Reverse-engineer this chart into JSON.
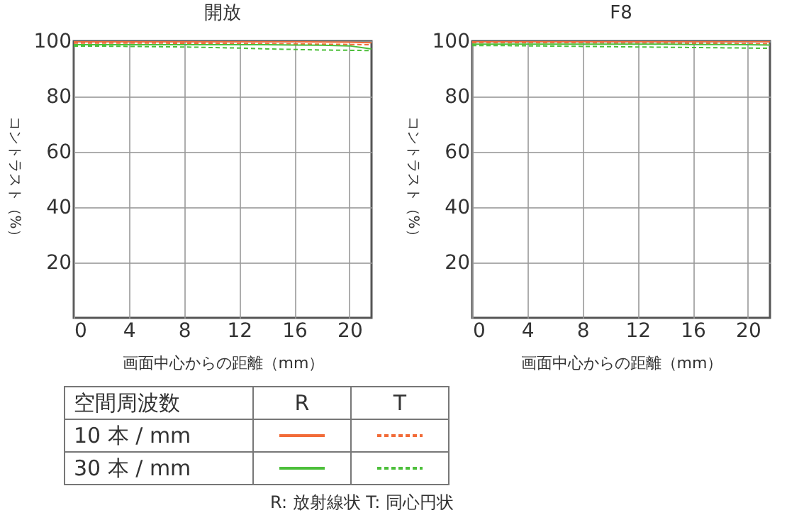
{
  "chart_data": [
    {
      "type": "line",
      "title": "開放",
      "xlabel": "画面中心からの距離（mm）",
      "ylabel": "コントラスト（%）",
      "legend_title": "空間周波数",
      "annotations": [
        "R",
        "T",
        "10 本 / mm",
        "30 本 / mm",
        "R: 放射線状  T: 同心円状"
      ],
      "x": [
        0,
        2,
        4,
        6,
        8,
        10,
        12,
        14,
        16,
        18,
        20,
        21.6
      ],
      "xlim": [
        0,
        21.6
      ],
      "ylim": [
        0,
        100
      ],
      "xticks": [
        0,
        4,
        8,
        12,
        16,
        20
      ],
      "yticks": [
        20,
        40,
        60,
        80,
        100
      ],
      "grid": true,
      "series": [
        {
          "color": "#f26b38",
          "line_style": "solid",
          "values": [
            99.8,
            99.8,
            99.8,
            99.8,
            99.8,
            99.8,
            99.8,
            99.8,
            99.8,
            99.7,
            99.6,
            99.4
          ]
        },
        {
          "color": "#f26b38",
          "line_style": "dashed",
          "values": [
            99.3,
            99.3,
            99.3,
            99.3,
            99.2,
            99.2,
            99.1,
            99.1,
            99.0,
            98.9,
            98.8,
            98.7
          ]
        },
        {
          "color": "#4cbf3a",
          "line_style": "solid",
          "values": [
            98.7,
            98.7,
            98.7,
            98.7,
            98.7,
            98.7,
            98.7,
            98.7,
            98.6,
            98.5,
            98.3,
            97.2
          ]
        },
        {
          "color": "#4cbf3a",
          "line_style": "dashed",
          "values": [
            98.2,
            98.2,
            98.1,
            98.0,
            97.9,
            97.7,
            97.5,
            97.2,
            97.0,
            96.8,
            96.7,
            96.6
          ]
        }
      ]
    },
    {
      "type": "line",
      "title": "F8",
      "xlabel": "画面中心からの距離（mm）",
      "ylabel": "コントラスト（%）",
      "x": [
        0,
        2,
        4,
        6,
        8,
        10,
        12,
        14,
        16,
        18,
        20,
        21.6
      ],
      "xlim": [
        0,
        21.6
      ],
      "ylim": [
        0,
        100
      ],
      "xticks": [
        0,
        4,
        8,
        12,
        16,
        20
      ],
      "yticks": [
        20,
        40,
        60,
        80,
        100
      ],
      "grid": true,
      "series": [
        {
          "color": "#f26b38",
          "line_style": "solid",
          "values": [
            99.9,
            99.9,
            99.9,
            99.9,
            99.9,
            99.9,
            99.9,
            99.9,
            99.9,
            99.9,
            99.9,
            99.8
          ]
        },
        {
          "color": "#f26b38",
          "line_style": "dashed",
          "values": [
            99.4,
            99.4,
            99.4,
            99.4,
            99.4,
            99.3,
            99.3,
            99.3,
            99.2,
            99.2,
            99.1,
            99.0
          ]
        },
        {
          "color": "#4cbf3a",
          "line_style": "solid",
          "values": [
            98.9,
            98.9,
            98.9,
            98.9,
            98.9,
            98.9,
            98.9,
            98.9,
            98.8,
            98.8,
            98.7,
            98.6
          ]
        },
        {
          "color": "#4cbf3a",
          "line_style": "dashed",
          "values": [
            98.4,
            98.4,
            98.3,
            98.2,
            98.1,
            98.0,
            97.9,
            97.8,
            97.7,
            97.6,
            97.5,
            97.4
          ]
        }
      ]
    }
  ]
}
